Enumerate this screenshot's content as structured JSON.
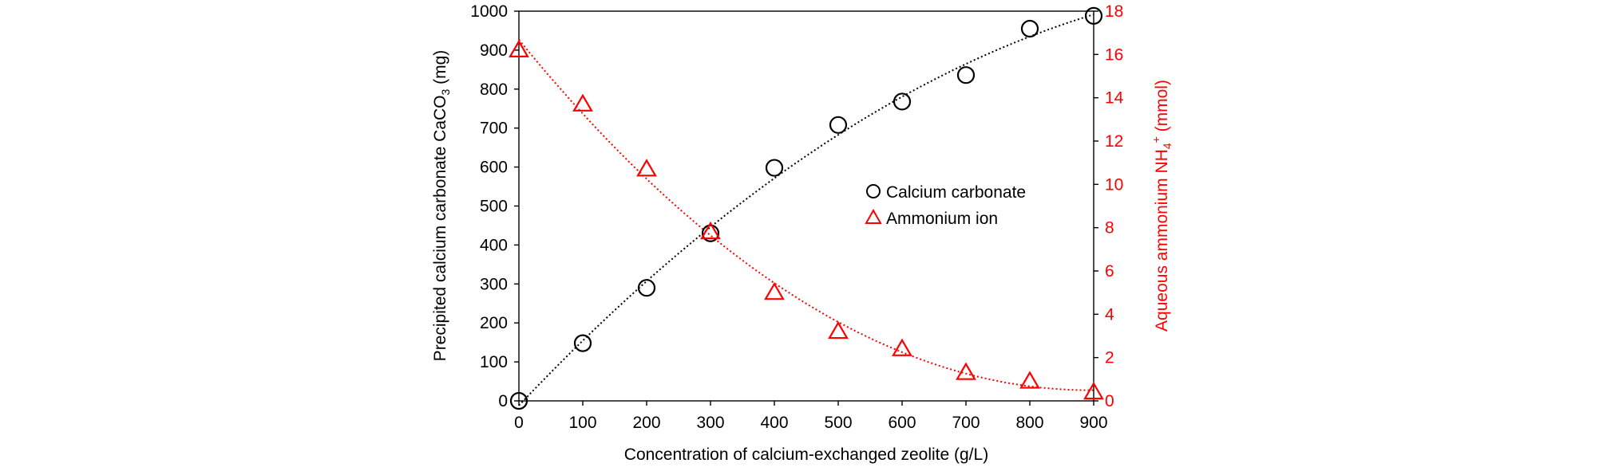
{
  "chart_data": {
    "type": "scatter",
    "title": "",
    "xlabel": "Concentration of calcium-exchanged zeolite (g/L)",
    "ylabel": {
      "prefix": "Precipited calcium carbonate CaCO",
      "sub": "3",
      "suffix": " (mg)"
    },
    "y2label": {
      "prefix": "Aqueous ammonium NH",
      "sub": "4",
      "sup": "+",
      "suffix": " (mmol)"
    },
    "xlim": [
      0,
      900
    ],
    "ylim": [
      0,
      1000
    ],
    "y2lim": [
      0,
      18
    ],
    "xticks": [
      0,
      100,
      200,
      300,
      400,
      500,
      600,
      700,
      800,
      900
    ],
    "yticks": [
      0,
      100,
      200,
      300,
      400,
      500,
      600,
      700,
      800,
      900,
      1000
    ],
    "y2ticks": [
      0,
      2,
      4,
      6,
      8,
      10,
      12,
      14,
      16,
      18
    ],
    "grid": false,
    "legend_position": "center-right",
    "series": [
      {
        "name": "Calcium carbonate",
        "axis": "left",
        "marker": "circle",
        "color": "#000000",
        "x": [
          0,
          100,
          200,
          300,
          400,
          500,
          600,
          700,
          800,
          900
        ],
        "y": [
          0,
          148,
          290,
          430,
          598,
          708,
          768,
          836,
          955,
          988
        ],
        "trendline": "quadratic-dotted"
      },
      {
        "name": "Ammonium ion",
        "axis": "right",
        "marker": "triangle",
        "color": "#ff0000",
        "x": [
          0,
          100,
          200,
          300,
          400,
          500,
          600,
          700,
          800,
          900
        ],
        "y": [
          16.2,
          13.7,
          10.7,
          7.8,
          5.0,
          3.2,
          2.4,
          1.3,
          0.9,
          0.4
        ],
        "trendline": "quadratic-dotted"
      }
    ]
  }
}
